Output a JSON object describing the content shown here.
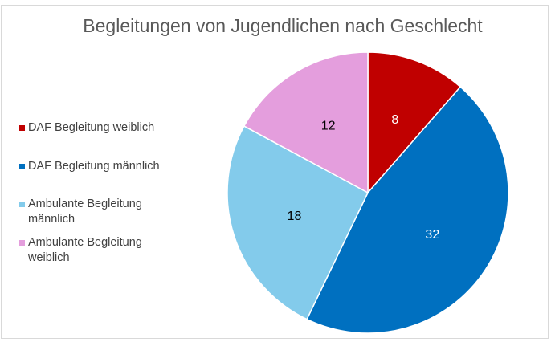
{
  "chart_data": {
    "type": "pie",
    "title": "Begleitungen von Jugendlichen nach Geschlecht",
    "categories": [
      "DAF Begleitung weiblich",
      "DAF Begleitung männlich",
      "Ambulante Begleitung männlich",
      "Ambulante Begleitung weiblich"
    ],
    "values": [
      8,
      32,
      18,
      12
    ],
    "colors": [
      "#c00000",
      "#0070c0",
      "#83cbeb",
      "#e49edd"
    ],
    "legend": "left"
  }
}
